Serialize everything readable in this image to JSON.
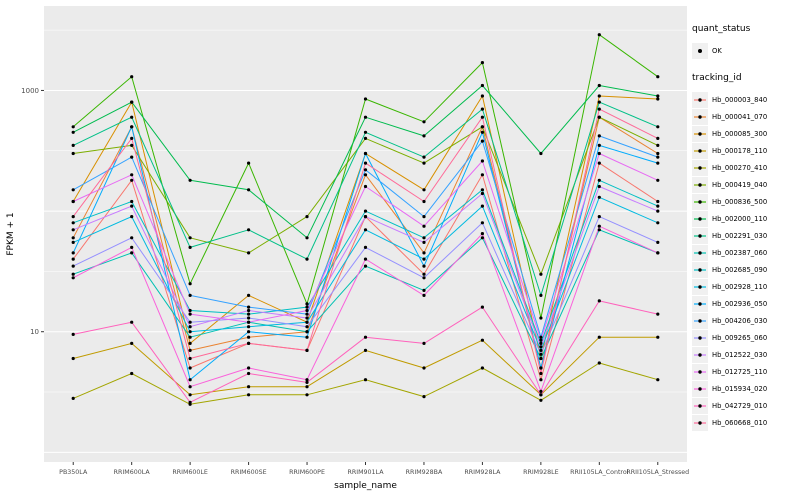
{
  "figure": {
    "panel_bg": "#EBEBEB",
    "grid_color": "#FFFFFF",
    "background": "#FFFFFF",
    "y_axis_label": "FPKM + 1",
    "x_axis_label": "sample_name",
    "y_tick_labels": [
      "1000",
      "10"
    ]
  },
  "legend": {
    "quant_status_title": "quant_status",
    "quant_status_items": [
      {
        "label": "OK"
      }
    ],
    "tracking_id_title": "tracking_id"
  },
  "chart_data": {
    "type": "line",
    "title": "",
    "xlabel": "sample_name",
    "ylabel": "FPKM + 1",
    "y_scale": "log10",
    "ylim": [
      1,
      4000
    ],
    "y_major_breaks": [
      1,
      10,
      100,
      1000
    ],
    "y_labeled_breaks": [
      10,
      1000
    ],
    "grid": true,
    "legend_position": "right",
    "point_color": "#000000",
    "x": [
      "PB350LA",
      "RRIM600LA",
      "RRIM600LE",
      "RRIM600SE",
      "RRIM600PE",
      "RRIM901LA",
      "RRIM928BA",
      "RRIM928LA",
      "RRIM928LE",
      "RRII105LA_Control",
      "RRII105LA_Stressed"
    ],
    "series": [
      {
        "name": "Hb_000003_840",
        "color": "#F8766D",
        "values": [
          40,
          180,
          5,
          8,
          7,
          90,
          30,
          200,
          4,
          250,
          120
        ]
      },
      {
        "name": "Hb_000041_070",
        "color": "#EA8331",
        "values": [
          60,
          500,
          7,
          9,
          10,
          200,
          45,
          500,
          5,
          600,
          300
        ]
      },
      {
        "name": "Hb_000085_300",
        "color": "#D89000",
        "values": [
          120,
          800,
          8,
          20,
          12,
          300,
          150,
          900,
          6,
          900,
          850
        ]
      },
      {
        "name": "Hb_000178_110",
        "color": "#C09B00",
        "values": [
          6,
          8,
          3,
          3.5,
          3.5,
          7,
          5,
          8.5,
          3,
          9,
          9
        ]
      },
      {
        "name": "Hb_000270_410",
        "color": "#A3A500",
        "values": [
          2.8,
          4.5,
          2.5,
          3,
          3,
          4,
          2.9,
          5,
          2.7,
          5.5,
          4
        ]
      },
      {
        "name": "Hb_000419_040",
        "color": "#7CAE00",
        "values": [
          300,
          350,
          60,
          45,
          90,
          400,
          250,
          500,
          30,
          600,
          350
        ]
      },
      {
        "name": "Hb_000836_500",
        "color": "#39B600",
        "values": [
          500,
          1300,
          25,
          250,
          17,
          850,
          550,
          1700,
          13,
          2900,
          1300
        ]
      },
      {
        "name": "Hb_002000_110",
        "color": "#00BB4E",
        "values": [
          450,
          800,
          180,
          150,
          60,
          600,
          420,
          1100,
          300,
          1100,
          900
        ]
      },
      {
        "name": "Hb_002291_030",
        "color": "#00C087",
        "values": [
          350,
          600,
          50,
          70,
          40,
          450,
          280,
          700,
          20,
          800,
          500
        ]
      },
      {
        "name": "Hb_002387_060",
        "color": "#00C0B2",
        "values": [
          30,
          45,
          9,
          12,
          10,
          35,
          22,
          60,
          6,
          70,
          45
        ]
      },
      {
        "name": "Hb_002685_090",
        "color": "#00BFC4",
        "values": [
          80,
          120,
          15,
          14,
          16,
          100,
          60,
          150,
          8,
          180,
          110
        ]
      },
      {
        "name": "Hb_002928_110",
        "color": "#00BAE0",
        "values": [
          55,
          90,
          10,
          11,
          12,
          70,
          40,
          110,
          7,
          130,
          80
        ]
      },
      {
        "name": "Hb_002936_050",
        "color": "#00ACFC",
        "values": [
          45,
          500,
          4,
          10,
          9,
          300,
          35,
          450,
          5,
          350,
          250
        ]
      },
      {
        "name": "Hb_004206_030",
        "color": "#35A2FF",
        "values": [
          150,
          280,
          20,
          16,
          14,
          220,
          90,
          380,
          9,
          420,
          280
        ]
      },
      {
        "name": "Hb_009265_060",
        "color": "#9590FF",
        "values": [
          35,
          60,
          12,
          13,
          11,
          50,
          28,
          80,
          6.5,
          90,
          55
        ]
      },
      {
        "name": "Hb_012522_030",
        "color": "#C77CFF",
        "values": [
          70,
          110,
          11,
          15,
          13,
          90,
          55,
          140,
          7.5,
          160,
          100
        ]
      },
      {
        "name": "Hb_012725_110",
        "color": "#E76BF3",
        "values": [
          120,
          200,
          14,
          12,
          15,
          160,
          75,
          260,
          8.5,
          300,
          180
        ]
      },
      {
        "name": "Hb_015934_020",
        "color": "#FA62DB",
        "values": [
          28,
          50,
          3.5,
          5,
          4,
          40,
          20,
          65,
          3.2,
          75,
          45
        ]
      },
      {
        "name": "Hb_042729_010",
        "color": "#FF62BC",
        "values": [
          9.5,
          12,
          2.6,
          4.5,
          3.8,
          9,
          8,
          16,
          3,
          18,
          14
        ]
      },
      {
        "name": "Hb_060668_010",
        "color": "#FF6A98",
        "values": [
          90,
          400,
          6,
          8,
          7,
          250,
          120,
          600,
          4.5,
          700,
          400
        ]
      }
    ]
  }
}
